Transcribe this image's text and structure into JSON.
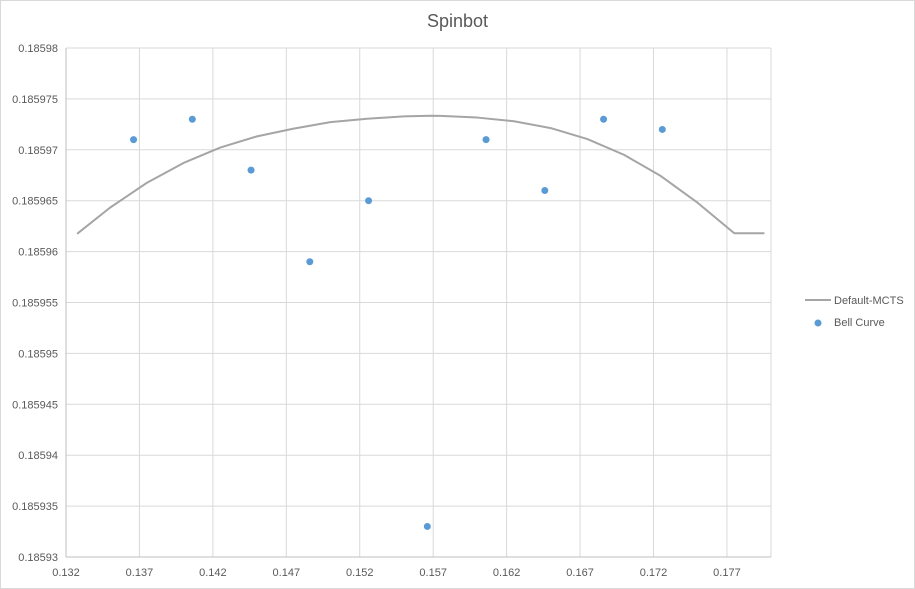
{
  "chart_data": {
    "type": "scatter",
    "title": "Spinbot",
    "xlabel": "",
    "ylabel": "",
    "xlim": [
      0.132,
      0.18
    ],
    "ylim": [
      0.18593,
      0.18598
    ],
    "x_ticks": [
      "0.132",
      "0.137",
      "0.142",
      "0.147",
      "0.152",
      "0.157",
      "0.162",
      "0.167",
      "0.172",
      "0.177"
    ],
    "y_ticks": [
      "0.18598",
      "0.185975",
      "0.18597",
      "0.185965",
      "0.18596",
      "0.185955",
      "0.18595",
      "0.185945",
      "0.18594",
      "0.185935",
      "0.18593"
    ],
    "grid": true,
    "legend_position": "right",
    "series": [
      {
        "name": "Default-MCTS",
        "kind": "line",
        "color": "#a5a5a5",
        "x": [
          0.1328,
          0.135,
          0.1375,
          0.14,
          0.1425,
          0.145,
          0.1475,
          0.15,
          0.1525,
          0.155,
          0.1568,
          0.1575,
          0.16,
          0.1625,
          0.165,
          0.1675,
          0.17,
          0.1725,
          0.175,
          0.1775,
          0.1795
        ],
        "y": [
          0.1859618,
          0.18596432,
          0.185966752,
          0.185968705,
          0.185970216,
          0.18597132,
          0.18597208,
          0.185972715,
          0.185973054,
          0.185973281,
          0.18597335,
          0.18597333,
          0.185973167,
          0.185972808,
          0.185972134,
          0.185971052,
          0.1859695,
          0.185967423,
          0.1859648,
          0.1859618,
          0.1859618
        ]
      },
      {
        "name": "Bell Curve",
        "kind": "points",
        "color": "#5b9bd5",
        "x": [
          0.1366,
          0.1406,
          0.1446,
          0.1486,
          0.1526,
          0.1566,
          0.1606,
          0.1646,
          0.1686,
          0.1726
        ],
        "y": [
          0.185971,
          0.185973,
          0.185968,
          0.185959,
          0.185965,
          0.185933,
          0.185971,
          0.185966,
          0.185973,
          0.185972
        ]
      }
    ]
  }
}
